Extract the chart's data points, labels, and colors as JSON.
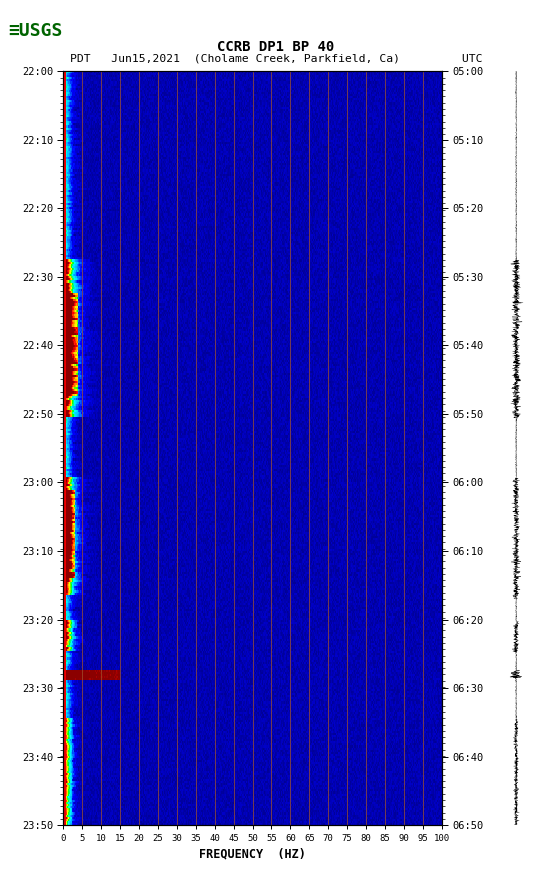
{
  "title_line1": "CCRB DP1 BP 40",
  "title_line2": "PDT   Jun15,2021  (Cholame Creek, Parkfield, Ca)         UTC",
  "xlabel": "FREQUENCY  (HZ)",
  "freq_ticks": [
    0,
    5,
    10,
    15,
    20,
    25,
    30,
    35,
    40,
    45,
    50,
    55,
    60,
    65,
    70,
    75,
    80,
    85,
    90,
    95,
    100
  ],
  "time_ticks_left": [
    "22:00",
    "22:10",
    "22:20",
    "22:30",
    "22:40",
    "22:50",
    "23:00",
    "23:10",
    "23:20",
    "23:30",
    "23:40",
    "23:50"
  ],
  "time_ticks_right": [
    "05:00",
    "05:10",
    "05:20",
    "05:30",
    "05:40",
    "05:50",
    "06:00",
    "06:10",
    "06:20",
    "06:30",
    "06:40",
    "06:50"
  ],
  "freq_min": 0,
  "freq_max": 100,
  "vertical_lines_freqs": [
    5,
    10,
    15,
    20,
    25,
    30,
    35,
    40,
    45,
    50,
    55,
    60,
    65,
    70,
    75,
    80,
    85,
    90,
    95
  ],
  "fig_width": 5.52,
  "fig_height": 8.92,
  "cmap_colors": [
    [
      0.0,
      "#00008B"
    ],
    [
      0.18,
      "#0000FF"
    ],
    [
      0.34,
      "#00BFFF"
    ],
    [
      0.46,
      "#00FFFF"
    ],
    [
      0.58,
      "#00FF00"
    ],
    [
      0.7,
      "#FFFF00"
    ],
    [
      0.82,
      "#FF8800"
    ],
    [
      0.91,
      "#FF0000"
    ],
    [
      1.0,
      "#8B0000"
    ]
  ]
}
